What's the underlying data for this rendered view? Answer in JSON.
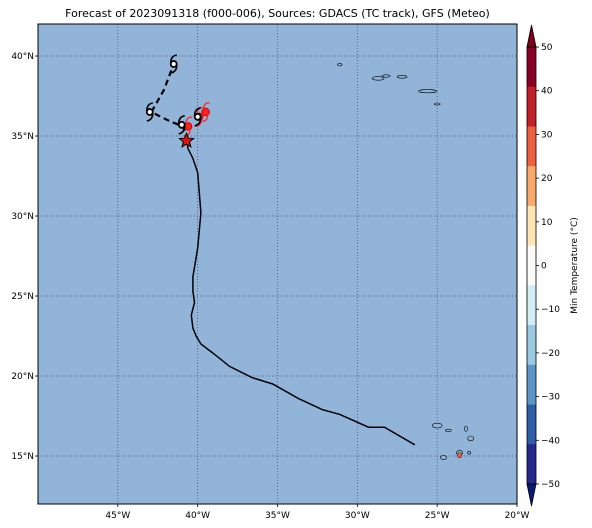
{
  "title": "Forecast of 2023091318 (f000-006), Sources: GDACS (TC track), GFS (Meteo)",
  "map": {
    "lon_range": [
      -50,
      -20
    ],
    "lat_range": [
      12,
      42
    ],
    "ocean_color": "#92b4d9",
    "grid": "dotted",
    "lon_ticks": [
      {
        "value": -45,
        "label": "45°W"
      },
      {
        "value": -40,
        "label": "40°W"
      },
      {
        "value": -35,
        "label": "35°W"
      },
      {
        "value": -30,
        "label": "30°W"
      },
      {
        "value": -25,
        "label": "25°W"
      },
      {
        "value": -20,
        "label": "20°W"
      }
    ],
    "lat_ticks": [
      {
        "value": 15,
        "label": "15°N"
      },
      {
        "value": 20,
        "label": "20°N"
      },
      {
        "value": 25,
        "label": "25°N"
      },
      {
        "value": 30,
        "label": "30°N"
      },
      {
        "value": 35,
        "label": "35°N"
      },
      {
        "value": 40,
        "label": "40°N"
      }
    ]
  },
  "past_track": [
    [
      -26.4,
      15.7
    ],
    [
      -28.3,
      16.8
    ],
    [
      -29.3,
      16.8
    ],
    [
      -31.1,
      17.6
    ],
    [
      -32.2,
      17.9
    ],
    [
      -33.7,
      18.6
    ],
    [
      -35.3,
      19.5
    ],
    [
      -36.6,
      19.9
    ],
    [
      -38.0,
      20.6
    ],
    [
      -39.0,
      21.4
    ],
    [
      -39.8,
      22.0
    ],
    [
      -40.1,
      22.5
    ],
    [
      -40.3,
      23.0
    ],
    [
      -40.4,
      23.8
    ],
    [
      -40.2,
      24.6
    ],
    [
      -40.3,
      25.3
    ],
    [
      -40.3,
      26.2
    ],
    [
      -40.0,
      28.0
    ],
    [
      -39.8,
      30.2
    ],
    [
      -40.0,
      32.7
    ],
    [
      -40.3,
      33.6
    ],
    [
      -40.6,
      34.2
    ],
    [
      -40.7,
      34.7
    ]
  ],
  "forecast_track": [
    [
      -40.7,
      34.7
    ],
    [
      -40.9,
      35.6
    ],
    [
      -41.7,
      35.9
    ],
    [
      -42.9,
      36.5
    ],
    [
      -42.1,
      37.9
    ],
    [
      -41.5,
      39.5
    ]
  ],
  "current_position": [
    -40.7,
    34.7
  ],
  "cyclone_symbols": [
    {
      "lon": -41.5,
      "lat": 39.5,
      "color": "#000000"
    },
    {
      "lon": -43.0,
      "lat": 36.5,
      "color": "#000000"
    },
    {
      "lon": -41.0,
      "lat": 35.7,
      "color": "#000000"
    },
    {
      "lon": -40.0,
      "lat": 36.2,
      "color": "#000000"
    }
  ],
  "red_symbols": [
    {
      "lon": -39.5,
      "lat": 36.5
    },
    {
      "lon": -39.9,
      "lat": 36.2
    },
    {
      "lon": -40.6,
      "lat": 35.6
    }
  ],
  "colorbar": {
    "label": "Min Temperature (°C)",
    "ticks": [
      "50",
      "40",
      "30",
      "20",
      "10",
      "0",
      "−10",
      "−20",
      "−30",
      "−40",
      "−50"
    ],
    "colors": [
      "#880022",
      "#c4202a",
      "#ec6040",
      "#f9a96a",
      "#fde6b4",
      "#fbfbf7",
      "#d2ecf4",
      "#9bc8e1",
      "#5a97c6",
      "#2f5ea6",
      "#24278c"
    ],
    "overflow_top": "#7b0015",
    "overflow_bottom": "#0b1a72"
  },
  "islands_color": "#92b4d9",
  "hot_spot_color": "#ec6040"
}
